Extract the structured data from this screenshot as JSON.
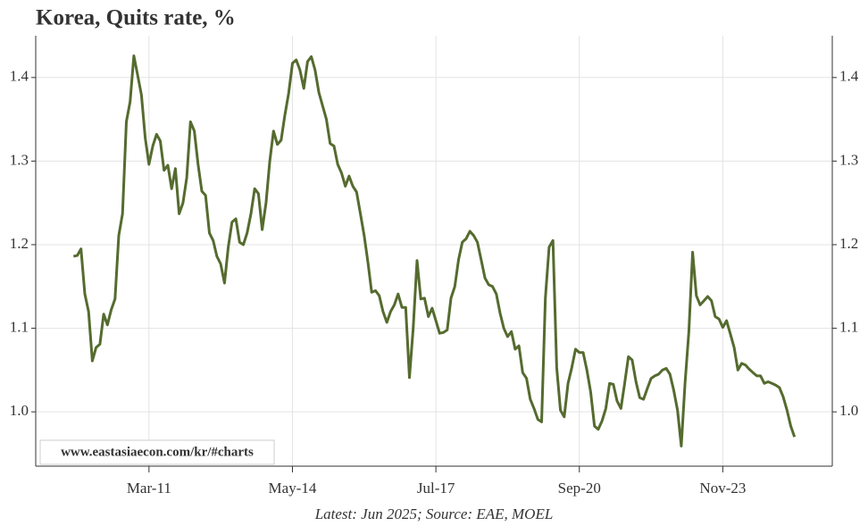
{
  "chart_data": {
    "type": "line",
    "title": "Korea, Quits rate, %",
    "watermark": "www.eastasiaecon.com/kr/#charts",
    "footnote": "Latest: Jun 2025; Source: EAE, MOEL",
    "color": "#556b2f",
    "grid": true,
    "xlim": [
      "2008-09",
      "2026-04"
    ],
    "xticks": [
      {
        "value": "2011-03",
        "label": "Mar-11"
      },
      {
        "value": "2014-05",
        "label": "May-14"
      },
      {
        "value": "2017-07",
        "label": "Jul-17"
      },
      {
        "value": "2020-09",
        "label": "Sep-20"
      },
      {
        "value": "2023-11",
        "label": "Nov-23"
      }
    ],
    "ylim": [
      0.935,
      1.45
    ],
    "yticks": [
      {
        "value": 1,
        "label": "1.0"
      },
      1.1,
      1.2,
      1.3,
      1.4
    ],
    "x": [
      "2009-07",
      "2009-08",
      "2009-09",
      "2009-10",
      "2009-11",
      "2009-12",
      "2010-01",
      "2010-02",
      "2010-03",
      "2010-04",
      "2010-05",
      "2010-06",
      "2010-07",
      "2010-08",
      "2010-09",
      "2010-10",
      "2010-11",
      "2010-12",
      "2011-01",
      "2011-02",
      "2011-03",
      "2011-04",
      "2011-05",
      "2011-06",
      "2011-07",
      "2011-08",
      "2011-09",
      "2011-10",
      "2011-11",
      "2011-12",
      "2012-01",
      "2012-02",
      "2012-03",
      "2012-04",
      "2012-05",
      "2012-06",
      "2012-07",
      "2012-08",
      "2012-09",
      "2012-10",
      "2012-11",
      "2012-12",
      "2013-01",
      "2013-02",
      "2013-03",
      "2013-04",
      "2013-05",
      "2013-06",
      "2013-07",
      "2013-08",
      "2013-09",
      "2013-10",
      "2013-11",
      "2013-12",
      "2014-01",
      "2014-02",
      "2014-03",
      "2014-04",
      "2014-05",
      "2014-06",
      "2014-07",
      "2014-08",
      "2014-09",
      "2014-10",
      "2014-11",
      "2014-12",
      "2015-01",
      "2015-02",
      "2015-03",
      "2015-04",
      "2015-05",
      "2015-06",
      "2015-07",
      "2015-08",
      "2015-09",
      "2015-10",
      "2015-11",
      "2015-12",
      "2016-01",
      "2016-02",
      "2016-03",
      "2016-04",
      "2016-05",
      "2016-06",
      "2016-07",
      "2016-08",
      "2016-09",
      "2016-10",
      "2016-11",
      "2016-12",
      "2017-01",
      "2017-02",
      "2017-03",
      "2017-04",
      "2017-05",
      "2017-06",
      "2017-07",
      "2017-08",
      "2017-09",
      "2017-10",
      "2017-11",
      "2017-12",
      "2018-01",
      "2018-02",
      "2018-03",
      "2018-04",
      "2018-05",
      "2018-06",
      "2018-07",
      "2018-08",
      "2018-09",
      "2018-10",
      "2018-11",
      "2018-12",
      "2019-01",
      "2019-02",
      "2019-03",
      "2019-04",
      "2019-05",
      "2019-06",
      "2019-07",
      "2019-08",
      "2019-09",
      "2019-10",
      "2019-11",
      "2019-12",
      "2020-01",
      "2020-02",
      "2020-03",
      "2020-04",
      "2020-05",
      "2020-06",
      "2020-07",
      "2020-08",
      "2020-09",
      "2020-10",
      "2020-11",
      "2020-12",
      "2021-01",
      "2021-02",
      "2021-03",
      "2021-04",
      "2021-05",
      "2021-06",
      "2021-07",
      "2021-08",
      "2021-09",
      "2021-10",
      "2021-11",
      "2021-12",
      "2022-01",
      "2022-02",
      "2022-03",
      "2022-04",
      "2022-05",
      "2022-06",
      "2022-07",
      "2022-08",
      "2022-09",
      "2022-10",
      "2022-11",
      "2022-12",
      "2023-01",
      "2023-02",
      "2023-03",
      "2023-04",
      "2023-05",
      "2023-06",
      "2023-07",
      "2023-08",
      "2023-09",
      "2023-10",
      "2023-11",
      "2023-12",
      "2024-01",
      "2024-02",
      "2024-03",
      "2024-04",
      "2024-05",
      "2024-06",
      "2024-07",
      "2024-08",
      "2024-09",
      "2024-10",
      "2024-11",
      "2024-12",
      "2025-01",
      "2025-02",
      "2025-03",
      "2025-04",
      "2025-05",
      "2025-06"
    ],
    "values": [
      1.186,
      1.187,
      1.195,
      1.141,
      1.12,
      1.061,
      1.077,
      1.081,
      1.117,
      1.104,
      1.122,
      1.135,
      1.211,
      1.237,
      1.347,
      1.371,
      1.426,
      1.403,
      1.379,
      1.328,
      1.296,
      1.318,
      1.332,
      1.324,
      1.289,
      1.295,
      1.267,
      1.291,
      1.237,
      1.25,
      1.28,
      1.347,
      1.336,
      1.296,
      1.264,
      1.259,
      1.214,
      1.205,
      1.186,
      1.177,
      1.154,
      1.197,
      1.227,
      1.231,
      1.203,
      1.2,
      1.214,
      1.237,
      1.267,
      1.261,
      1.218,
      1.25,
      1.3,
      1.336,
      1.32,
      1.325,
      1.355,
      1.381,
      1.417,
      1.421,
      1.409,
      1.387,
      1.419,
      1.425,
      1.409,
      1.382,
      1.366,
      1.35,
      1.321,
      1.318,
      1.296,
      1.286,
      1.27,
      1.282,
      1.27,
      1.263,
      1.237,
      1.211,
      1.179,
      1.143,
      1.145,
      1.139,
      1.12,
      1.107,
      1.12,
      1.128,
      1.141,
      1.125,
      1.125,
      1.041,
      1.1,
      1.181,
      1.135,
      1.136,
      1.114,
      1.124,
      1.109,
      1.094,
      1.095,
      1.098,
      1.136,
      1.15,
      1.182,
      1.203,
      1.207,
      1.216,
      1.211,
      1.203,
      1.182,
      1.16,
      1.152,
      1.15,
      1.141,
      1.118,
      1.1,
      1.09,
      1.096,
      1.075,
      1.079,
      1.047,
      1.04,
      1.015,
      1.004,
      0.991,
      0.988,
      1.136,
      1.197,
      1.205,
      1.053,
      1.002,
      0.994,
      1.034,
      1.053,
      1.075,
      1.071,
      1.071,
      1.05,
      1.024,
      0.983,
      0.979,
      0.989,
      1.004,
      1.034,
      1.033,
      1.013,
      1.004,
      1.034,
      1.066,
      1.062,
      1.036,
      1.017,
      1.015,
      1.028,
      1.04,
      1.043,
      1.045,
      1.05,
      1.052,
      1.045,
      1.026,
      1.002,
      0.959,
      1.034,
      1.096,
      1.191,
      1.139,
      1.128,
      1.133,
      1.138,
      1.133,
      1.114,
      1.111,
      1.101,
      1.109,
      1.093,
      1.077,
      1.05,
      1.058,
      1.056,
      1.051,
      1.047,
      1.043,
      1.043,
      1.034,
      1.036,
      1.034,
      1.032,
      1.029,
      1.018,
      1.002,
      0.983,
      0.97
    ]
  }
}
